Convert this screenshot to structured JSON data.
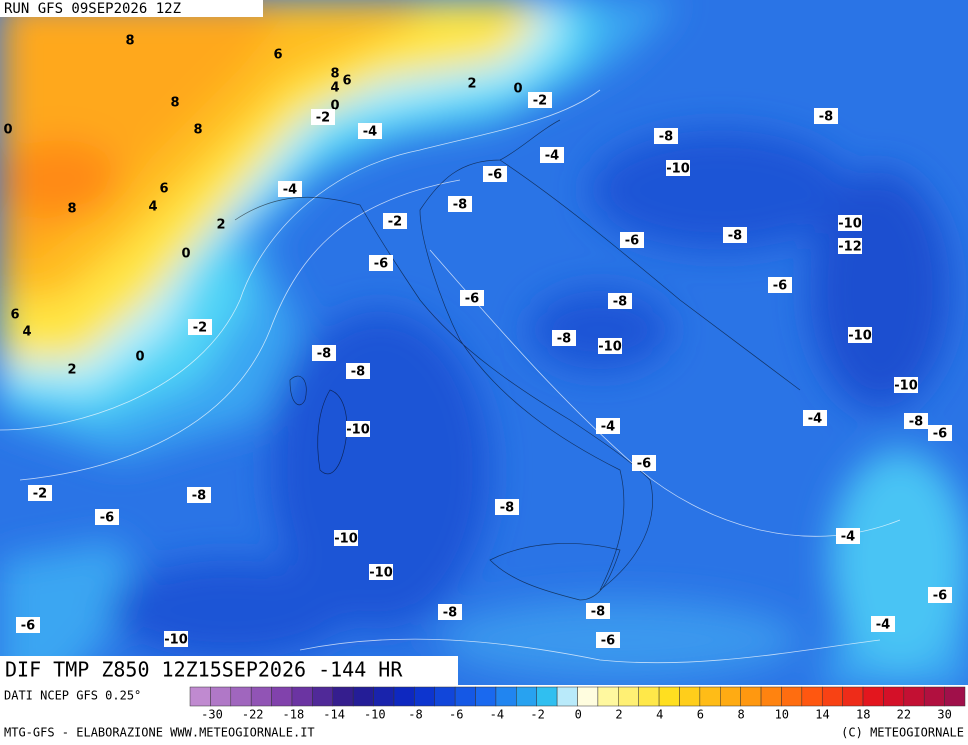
{
  "header": {
    "run": "RUN GFS 09SEP2026 12Z"
  },
  "map": {
    "title": "DIF TMP Z850 12Z15SEP2026 -144 HR",
    "source": "DATI NCEP GFS 0.25°",
    "labels": [
      8,
      6,
      8,
      6,
      4,
      0,
      2,
      0,
      -2,
      8,
      0,
      8,
      -2,
      -4,
      -8,
      -8,
      -4,
      -10,
      -6,
      6,
      4,
      8,
      -4,
      -8,
      -2,
      2,
      -10,
      -6,
      -8,
      -12,
      0,
      -6,
      -6,
      -6,
      -8,
      6,
      4,
      -2,
      -10,
      -8,
      -10,
      0,
      -8,
      2,
      -8,
      -10,
      -4,
      -8,
      -4,
      -10,
      -6,
      -6,
      -2,
      -8,
      -8,
      -6,
      -4,
      -10,
      -10,
      -6,
      -8,
      -8,
      -4,
      -6,
      -6,
      -10
    ]
  },
  "legend": {
    "ticks": [
      -30,
      -22,
      -18,
      -14,
      -10,
      -8,
      -6,
      -4,
      -2,
      0,
      2,
      4,
      6,
      8,
      10,
      14,
      18,
      22,
      30
    ]
  },
  "footer": {
    "left": "MTG-GFS - ELABORAZIONE WWW.METEOGIORNALE.IT",
    "right": "(C) METEOGIORNALE"
  }
}
